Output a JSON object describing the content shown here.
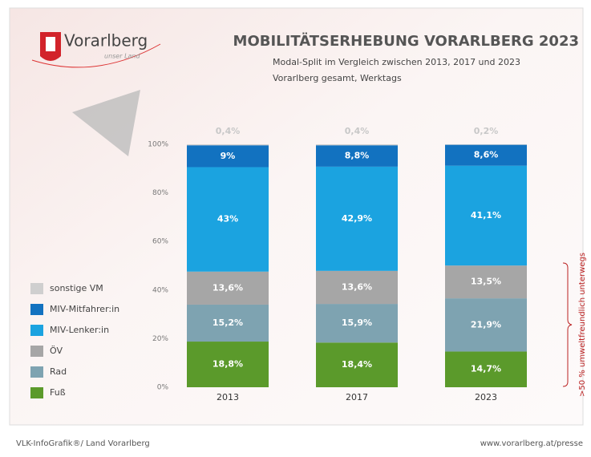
{
  "logo": {
    "name": "Vorarlberg",
    "tagline": "unser Land"
  },
  "footer": {
    "left": "VLK-InfoGrafik®/ Land Vorarlberg",
    "right": "www.vorarlberg.at/presse"
  },
  "chart_data": {
    "type": "stacked_bar",
    "title": "MOBILITÄTSERHEBUNG VORARLBERG 2023",
    "subtitle": [
      "Modal-Split im Vergleich zwischen 2013, 2017 und 2023",
      "Vorarlberg gesamt, Werktags"
    ],
    "annotation": ">50 % umweltfreundlich unterwegs",
    "categories": [
      "2013",
      "2017",
      "2023"
    ],
    "ylim": [
      0,
      100
    ],
    "yticks": [
      {
        "value": 0,
        "label": "0%"
      },
      {
        "value": 20,
        "label": "20%"
      },
      {
        "value": 40,
        "label": "40%"
      },
      {
        "value": 60,
        "label": "60%"
      },
      {
        "value": 80,
        "label": "80%"
      },
      {
        "value": 100,
        "label": "100%"
      }
    ],
    "grid": false,
    "legend": "left",
    "series": [
      {
        "name": "Fuß",
        "color": "#5b9a2b",
        "values": [
          18.8,
          18.4,
          14.7
        ],
        "value_labels": [
          "18,8%",
          "18,4%",
          "14,7%"
        ]
      },
      {
        "name": "Rad",
        "color": "#7ea3b1",
        "values": [
          15.2,
          15.9,
          21.9
        ],
        "value_labels": [
          "15,2%",
          "15,9%",
          "21,9%"
        ]
      },
      {
        "name": "ÖV",
        "color": "#a6a6a6",
        "values": [
          13.6,
          13.6,
          13.5
        ],
        "value_labels": [
          "13,6%",
          "13,6%",
          "13,5%"
        ]
      },
      {
        "name": "MIV-Lenker:in",
        "color": "#1ba3e0",
        "values": [
          43,
          42.9,
          41.1
        ],
        "value_labels": [
          "43%",
          "42,9%",
          "41,1%"
        ]
      },
      {
        "name": "MIV-Mitfahrer:in",
        "color": "#1272c0",
        "values": [
          9,
          8.8,
          8.6
        ],
        "value_labels": [
          "9%",
          "8,8%",
          "8,6%"
        ]
      },
      {
        "name": "sonstige VM",
        "color": "#cfcfcf",
        "values": [
          0.4,
          0.4,
          0.2
        ],
        "value_labels": [
          "0,4%",
          "0,4%",
          "0,2%"
        ]
      }
    ]
  }
}
